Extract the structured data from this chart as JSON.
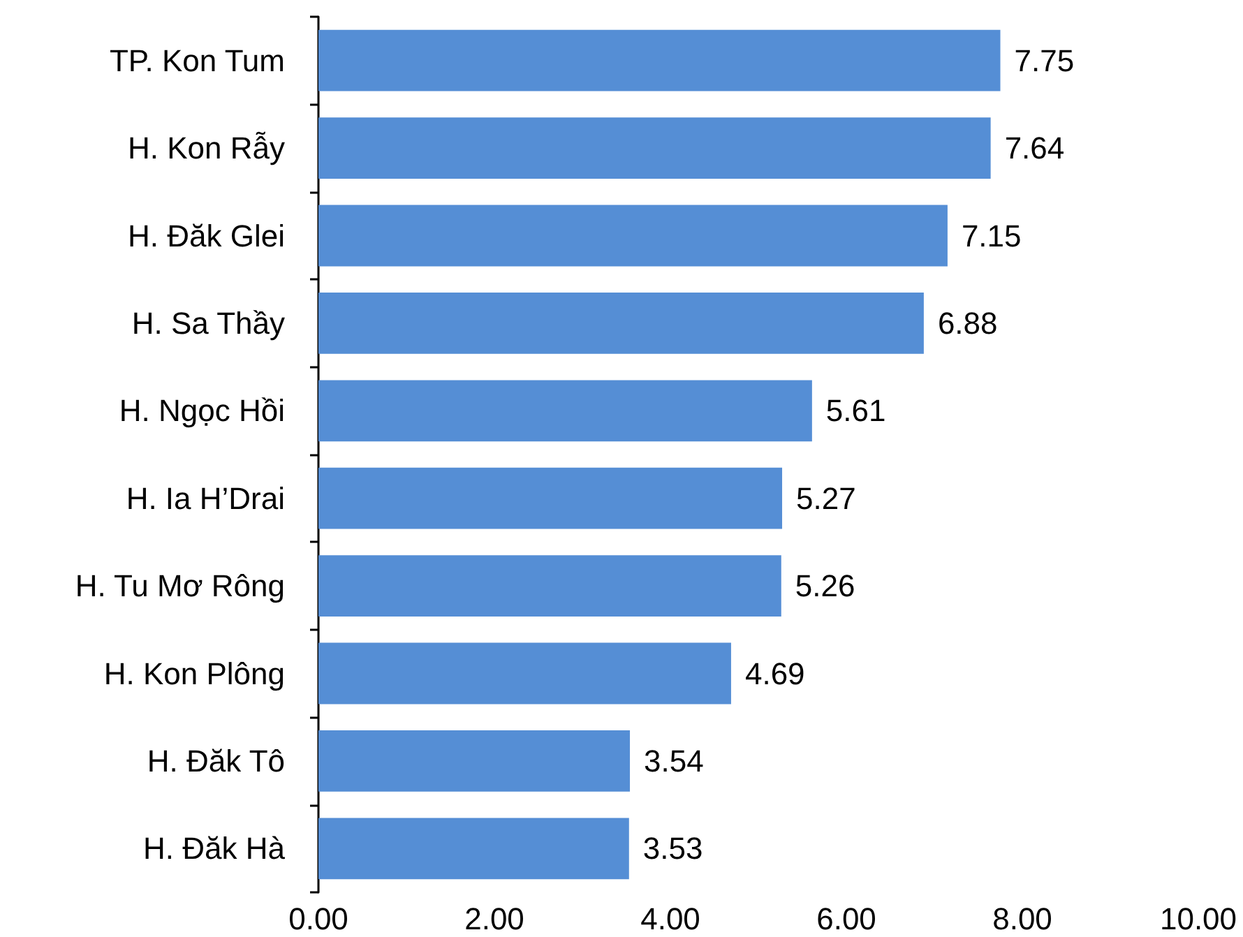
{
  "chart_data": {
    "type": "bar",
    "orientation": "horizontal",
    "categories": [
      "TP. Kon Tum",
      "H. Kon Rẫy",
      "H. Đăk Glei",
      "H. Sa Thầy",
      "H. Ngọc Hồi",
      "H. Ia H’Drai",
      "H. Tu Mơ Rông",
      "H. Kon Plông",
      "H. Đăk Tô",
      "H. Đăk Hà"
    ],
    "values": [
      7.75,
      7.64,
      7.15,
      6.88,
      5.61,
      5.27,
      5.26,
      4.69,
      3.54,
      3.53
    ],
    "color": "#558ed5",
    "xlim": [
      0,
      10
    ],
    "xticks": [
      {
        "value": 0,
        "label": "0.00"
      },
      {
        "value": 2,
        "label": "2.00"
      },
      {
        "value": 4,
        "label": "4.00"
      },
      {
        "value": 6,
        "label": "6.00"
      },
      {
        "value": 8,
        "label": "8.00"
      },
      {
        "value": 10,
        "label": "10.00"
      }
    ],
    "data_labels": true,
    "grid": false
  }
}
